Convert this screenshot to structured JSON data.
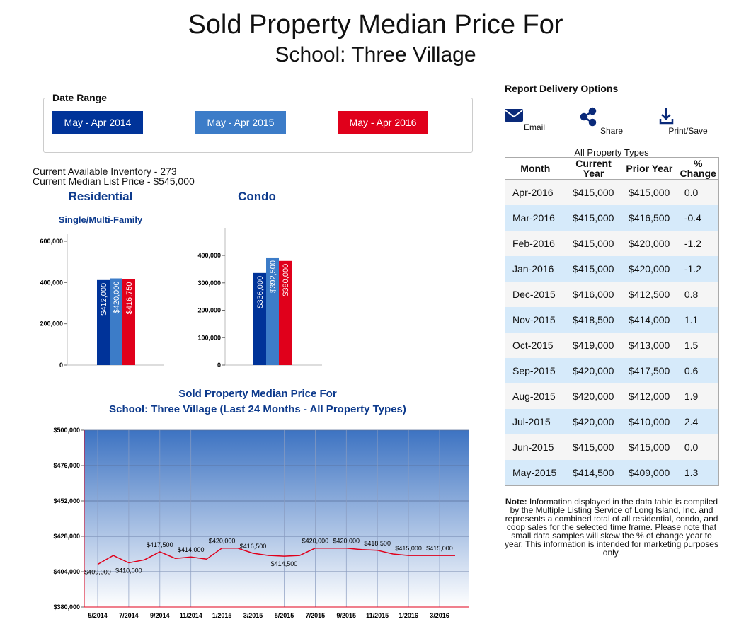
{
  "header": {
    "title": "Sold Property Median Price For",
    "subtitle": "School: Three Village"
  },
  "date_range": {
    "label": "Date Range",
    "buttons": [
      "May - Apr 2014",
      "May - Apr 2015",
      "May - Apr 2016"
    ],
    "colors": [
      "#003399",
      "#3c7cc8",
      "#e0001b"
    ]
  },
  "inventory": [
    "Current Available Inventory - 273",
    "Current Median List Price - $545,000"
  ],
  "chart_data": [
    {
      "type": "bar",
      "title": "Residential",
      "subtitle": "Single/Multi-Family",
      "series": [
        {
          "color": "#003399",
          "values": [
            412000
          ],
          "value_labels": [
            "$412,000"
          ]
        },
        {
          "color": "#3c7cc8",
          "values": [
            420000
          ],
          "value_labels": [
            "$420,000"
          ]
        },
        {
          "color": "#e0001b",
          "values": [
            416750
          ],
          "value_labels": [
            "$416,750"
          ]
        }
      ],
      "ylim": [
        0,
        600000
      ],
      "yticks": [
        0,
        {
          "value": 200000,
          "label": "200,000"
        },
        {
          "value": 400000,
          "label": "400,000"
        },
        {
          "value": 600000,
          "label": "600,000"
        }
      ]
    },
    {
      "type": "bar",
      "title": "Condo",
      "series": [
        {
          "color": "#003399",
          "values": [
            336000
          ],
          "value_labels": [
            "$336,000"
          ]
        },
        {
          "color": "#3c7cc8",
          "values": [
            392500
          ],
          "value_labels": [
            "$392,500"
          ]
        },
        {
          "color": "#e0001b",
          "values": [
            380000
          ],
          "value_labels": [
            "$380,000"
          ]
        }
      ],
      "ylim": [
        0,
        475000
      ],
      "yticks": [
        0,
        {
          "value": 100000,
          "label": "100,000"
        },
        {
          "value": 200000,
          "label": "200,000"
        },
        {
          "value": 300000,
          "label": "300,000"
        },
        {
          "value": 400000,
          "label": "400,000"
        }
      ]
    },
    {
      "type": "line",
      "title": "Sold Property Median Price For",
      "subtitle": "School: Three Village (Last 24 Months - All Property Types)",
      "categories": [
        "5/2014",
        null,
        "7/2014",
        null,
        "9/2014",
        null,
        "11/2014",
        null,
        "1/2015",
        null,
        "3/2015",
        null,
        "5/2015",
        null,
        "7/2015",
        null,
        "9/2015",
        null,
        "11/2015",
        null,
        "1/2016",
        null,
        "3/2016",
        null
      ],
      "series": [
        {
          "color": "#e0001b",
          "values": [
            409000,
            415000,
            410000,
            412000,
            417500,
            413000,
            414000,
            412500,
            420000,
            420000,
            416500,
            415000,
            414500,
            415000,
            420000,
            420000,
            420000,
            419000,
            418500,
            416000,
            415000,
            415000,
            415000,
            415000
          ],
          "value_labels": [
            "$409,000",
            null,
            "$410,000",
            null,
            "$417,500",
            null,
            "$414,000",
            null,
            "$420,000",
            null,
            "$416,500",
            null,
            "$414,500",
            null,
            "$420,000",
            null,
            "$420,000",
            null,
            "$418,500",
            null,
            "$415,000",
            null,
            "$415,000",
            null
          ]
        }
      ],
      "ylim": [
        380000,
        500000
      ],
      "yticks": [
        {
          "value": 380000,
          "label": "$380,000"
        },
        {
          "value": 404000,
          "label": "$404,000"
        },
        {
          "value": 428000,
          "label": "$428,000"
        },
        {
          "value": 452000,
          "label": "$452,000"
        },
        {
          "value": 476000,
          "label": "$476,000"
        },
        {
          "value": 500000,
          "label": "$500,000"
        }
      ],
      "grid": true
    }
  ],
  "delivery": {
    "title": "Report Delivery Options",
    "options": [
      "Email",
      "Share",
      "Print/Save"
    ]
  },
  "table": {
    "caption": "All Property Types",
    "columns": [
      "Month",
      "Current Year",
      "Prior Year",
      "% Change"
    ],
    "rows": [
      [
        "Apr-2016",
        "$415,000",
        "$415,000",
        "0.0"
      ],
      [
        "Mar-2016",
        "$415,000",
        "$416,500",
        "-0.4"
      ],
      [
        "Feb-2016",
        "$415,000",
        "$420,000",
        "-1.2"
      ],
      [
        "Jan-2016",
        "$415,000",
        "$420,000",
        "-1.2"
      ],
      [
        "Dec-2015",
        "$416,000",
        "$412,500",
        "0.8"
      ],
      [
        "Nov-2015",
        "$418,500",
        "$414,000",
        "1.1"
      ],
      [
        "Oct-2015",
        "$419,000",
        "$413,000",
        "1.5"
      ],
      [
        "Sep-2015",
        "$420,000",
        "$417,500",
        "0.6"
      ],
      [
        "Aug-2015",
        "$420,000",
        "$412,000",
        "1.9"
      ],
      [
        "Jul-2015",
        "$420,000",
        "$410,000",
        "2.4"
      ],
      [
        "Jun-2015",
        "$415,000",
        "$415,000",
        "0.0"
      ],
      [
        "May-2015",
        "$414,500",
        "$409,000",
        "1.3"
      ]
    ]
  },
  "note": {
    "label": "Note:",
    "text": "Information displayed in the data table is compiled by the Multiple Listing Service of Long Island, Inc. and represents a combined total of all residential, condo, and coop sales for the selected time frame. Please note that small data samples will skew the % of change year to year.  This information is intended for marketing purposes only."
  }
}
